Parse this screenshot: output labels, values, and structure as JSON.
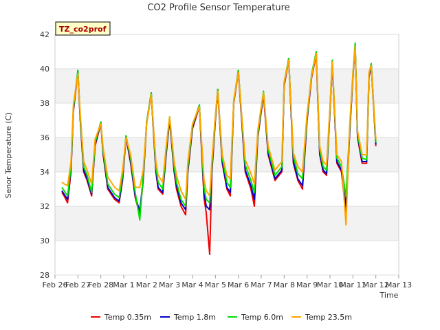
{
  "chart_data": {
    "type": "line",
    "title": "CO2 Profile Sensor Temperature",
    "xlabel": "Time",
    "ylabel": "Senor Temperature (C)",
    "ylim": [
      28,
      42
    ],
    "yticks": [
      28,
      30,
      32,
      34,
      36,
      38,
      40,
      42
    ],
    "xlim": [
      0,
      15
    ],
    "xticks": [
      0,
      1,
      2,
      3,
      4,
      5,
      6,
      7,
      8,
      9,
      10,
      11,
      12,
      13,
      14,
      15
    ],
    "xtick_labels": [
      "Feb 26",
      "Feb 27",
      "Feb 28",
      "Mar 1",
      "Mar 2",
      "Mar 3",
      "Mar 4",
      "Mar 5",
      "Mar 6",
      "Mar 7",
      "Mar 8",
      "Mar 9",
      "Mar 10",
      "Mar 11",
      "Mar 12",
      "Mar 13"
    ],
    "x_unit": "days since Feb 26",
    "annotation": "TZ_co2prof",
    "grid": true,
    "legend_position": "bottom",
    "series": [
      {
        "name": "Temp 0.35m",
        "color": "#ee0000",
        "x": [
          0.3,
          0.4,
          0.55,
          0.7,
          0.8,
          1.0,
          1.1,
          1.25,
          1.4,
          1.6,
          1.75,
          2.0,
          2.1,
          2.3,
          2.6,
          2.8,
          2.95,
          3.1,
          3.3,
          3.5,
          3.7,
          3.85,
          4.0,
          4.2,
          4.4,
          4.5,
          4.7,
          4.85,
          5.0,
          5.2,
          5.3,
          5.5,
          5.7,
          5.8,
          6.0,
          6.3,
          6.5,
          6.6,
          6.75,
          6.85,
          7.0,
          7.1,
          7.3,
          7.5,
          7.65,
          7.8,
          8.0,
          8.3,
          8.55,
          8.7,
          8.85,
          9.0,
          9.1,
          9.3,
          9.6,
          9.9,
          10.0,
          10.2,
          10.4,
          10.6,
          10.8,
          11.0,
          11.2,
          11.4,
          11.55,
          11.7,
          11.85,
          12.0,
          12.1,
          12.3,
          12.5,
          12.7,
          12.85,
          13.0,
          13.1,
          13.2,
          13.4,
          13.6,
          13.7,
          13.8,
          14.0
        ],
        "values": [
          32.8,
          32.6,
          32.2,
          34.0,
          37.5,
          39.8,
          37.0,
          34.0,
          33.5,
          32.6,
          35.5,
          36.8,
          35.0,
          33.0,
          32.4,
          32.2,
          33.5,
          36.0,
          34.5,
          32.5,
          31.5,
          33.5,
          36.8,
          38.5,
          34.0,
          33.0,
          32.7,
          35.0,
          37.0,
          34.0,
          33.0,
          32.0,
          31.5,
          34.0,
          36.5,
          37.8,
          32.5,
          31.6,
          29.2,
          34.0,
          37.0,
          38.7,
          34.5,
          33.0,
          32.6,
          38.0,
          39.8,
          34.0,
          33.0,
          32.0,
          36.0,
          37.5,
          38.5,
          35.0,
          33.5,
          34.0,
          39.0,
          40.5,
          34.5,
          33.5,
          33.0,
          37.0,
          39.5,
          40.8,
          35.0,
          34.0,
          33.8,
          37.5,
          40.3,
          34.5,
          34.0,
          31.5,
          36.0,
          39.5,
          41.3,
          36.0,
          34.5,
          34.5,
          39.5,
          40.2,
          35.5
        ]
      },
      {
        "name": "Temp 1.8m",
        "color": "#0000cc",
        "x": [
          0.3,
          0.4,
          0.55,
          0.7,
          0.8,
          1.0,
          1.1,
          1.25,
          1.4,
          1.6,
          1.75,
          2.0,
          2.1,
          2.3,
          2.6,
          2.8,
          2.95,
          3.1,
          3.3,
          3.5,
          3.7,
          3.85,
          4.0,
          4.2,
          4.4,
          4.5,
          4.7,
          4.85,
          5.0,
          5.2,
          5.3,
          5.5,
          5.7,
          5.8,
          6.0,
          6.3,
          6.5,
          6.6,
          6.75,
          6.85,
          7.0,
          7.1,
          7.3,
          7.5,
          7.65,
          7.8,
          8.0,
          8.3,
          8.55,
          8.7,
          8.85,
          9.0,
          9.1,
          9.3,
          9.6,
          9.9,
          10.0,
          10.2,
          10.4,
          10.6,
          10.8,
          11.0,
          11.2,
          11.4,
          11.55,
          11.7,
          11.85,
          12.0,
          12.1,
          12.3,
          12.5,
          12.7,
          12.85,
          13.0,
          13.1,
          13.2,
          13.4,
          13.6,
          13.7,
          13.8,
          14.0
        ],
        "values": [
          32.9,
          32.7,
          32.4,
          34.2,
          37.6,
          39.9,
          37.1,
          34.1,
          33.6,
          32.7,
          35.6,
          36.9,
          35.1,
          33.1,
          32.5,
          32.3,
          33.6,
          36.1,
          34.6,
          32.6,
          31.7,
          33.6,
          36.9,
          38.6,
          34.1,
          33.1,
          32.8,
          35.1,
          37.1,
          34.1,
          33.2,
          32.2,
          31.8,
          34.1,
          36.6,
          37.9,
          32.8,
          32.0,
          31.8,
          34.2,
          37.1,
          38.8,
          34.6,
          33.1,
          32.8,
          38.1,
          39.9,
          34.1,
          33.2,
          32.4,
          36.1,
          37.6,
          38.6,
          35.1,
          33.6,
          34.1,
          39.1,
          40.6,
          34.6,
          33.6,
          33.2,
          37.1,
          39.6,
          40.9,
          35.1,
          34.1,
          33.9,
          37.6,
          40.4,
          34.6,
          34.1,
          32.0,
          36.1,
          39.6,
          41.4,
          36.1,
          34.6,
          34.6,
          39.6,
          40.3,
          35.6
        ]
      },
      {
        "name": "Temp 6.0m",
        "color": "#00dd00",
        "x": [
          0.3,
          0.4,
          0.55,
          0.7,
          0.8,
          1.0,
          1.1,
          1.25,
          1.4,
          1.6,
          1.75,
          2.0,
          2.1,
          2.3,
          2.6,
          2.8,
          2.95,
          3.1,
          3.3,
          3.5,
          3.7,
          3.85,
          4.0,
          4.2,
          4.4,
          4.5,
          4.7,
          4.85,
          5.0,
          5.2,
          5.3,
          5.5,
          5.7,
          5.8,
          6.0,
          6.3,
          6.5,
          6.6,
          6.75,
          6.85,
          7.0,
          7.1,
          7.3,
          7.5,
          7.65,
          7.8,
          8.0,
          8.3,
          8.55,
          8.7,
          8.85,
          9.0,
          9.1,
          9.3,
          9.6,
          9.9,
          10.0,
          10.2,
          10.4,
          10.6,
          10.8,
          11.0,
          11.2,
          11.4,
          11.55,
          11.7,
          11.85,
          12.0,
          12.1,
          12.3,
          12.5,
          12.7,
          12.85,
          13.0,
          13.1,
          13.2,
          13.4,
          13.6,
          13.7,
          13.8,
          14.0
        ],
        "values": [
          33.1,
          32.9,
          32.6,
          34.3,
          37.7,
          39.9,
          37.2,
          34.3,
          33.8,
          32.8,
          35.7,
          36.9,
          35.2,
          33.3,
          32.7,
          32.5,
          33.8,
          36.1,
          34.8,
          32.8,
          31.2,
          33.8,
          36.9,
          38.6,
          34.3,
          33.4,
          33.0,
          35.3,
          37.2,
          34.3,
          33.4,
          32.4,
          32.0,
          34.3,
          36.7,
          37.9,
          33.1,
          32.4,
          32.2,
          34.4,
          37.2,
          38.8,
          34.8,
          33.4,
          33.1,
          38.1,
          39.9,
          34.4,
          33.5,
          32.8,
          36.2,
          37.7,
          38.7,
          35.3,
          33.8,
          34.3,
          39.2,
          40.6,
          34.9,
          33.9,
          33.6,
          37.2,
          39.7,
          41.0,
          35.3,
          34.3,
          34.1,
          37.7,
          40.5,
          34.8,
          34.3,
          32.6,
          36.3,
          39.7,
          41.5,
          36.2,
          34.8,
          34.7,
          39.7,
          40.3,
          35.7
        ]
      },
      {
        "name": "Temp 23.5m",
        "color": "#ffa500",
        "x": [
          0.3,
          0.4,
          0.55,
          0.7,
          0.8,
          1.0,
          1.1,
          1.25,
          1.4,
          1.6,
          1.75,
          2.0,
          2.1,
          2.3,
          2.6,
          2.8,
          2.95,
          3.1,
          3.3,
          3.5,
          3.7,
          3.85,
          4.0,
          4.2,
          4.4,
          4.5,
          4.7,
          4.85,
          5.0,
          5.2,
          5.3,
          5.5,
          5.7,
          5.8,
          6.0,
          6.3,
          6.5,
          6.6,
          6.75,
          6.85,
          7.0,
          7.1,
          7.3,
          7.5,
          7.65,
          7.8,
          8.0,
          8.3,
          8.55,
          8.7,
          8.85,
          9.0,
          9.1,
          9.3,
          9.6,
          9.9,
          10.0,
          10.2,
          10.4,
          10.6,
          10.8,
          11.0,
          11.2,
          11.4,
          11.55,
          11.7,
          11.85,
          12.0,
          12.1,
          12.3,
          12.5,
          12.7,
          12.85,
          13.0,
          13.1,
          13.2,
          13.4,
          13.6,
          13.7,
          13.8,
          14.0
        ],
        "values": [
          33.4,
          33.3,
          33.2,
          34.6,
          37.9,
          39.7,
          37.4,
          34.6,
          34.1,
          33.3,
          35.9,
          36.8,
          35.4,
          33.7,
          33.1,
          32.9,
          34.1,
          36.0,
          35.0,
          33.1,
          33.1,
          34.1,
          36.8,
          38.5,
          34.6,
          33.8,
          33.4,
          35.5,
          37.2,
          34.6,
          33.8,
          32.9,
          32.4,
          34.6,
          36.8,
          37.8,
          33.6,
          32.9,
          32.6,
          34.7,
          37.3,
          38.7,
          35.0,
          33.8,
          33.6,
          38.2,
          39.8,
          34.7,
          33.9,
          33.3,
          36.4,
          37.8,
          38.6,
          35.5,
          34.1,
          34.6,
          39.2,
          40.5,
          35.1,
          34.3,
          34.0,
          37.4,
          39.6,
          40.9,
          35.5,
          34.6,
          34.4,
          37.8,
          40.4,
          35.0,
          34.6,
          30.9,
          36.5,
          39.7,
          41.3,
          36.4,
          35.0,
          35.0,
          39.8,
          40.2,
          35.9
        ]
      }
    ]
  }
}
